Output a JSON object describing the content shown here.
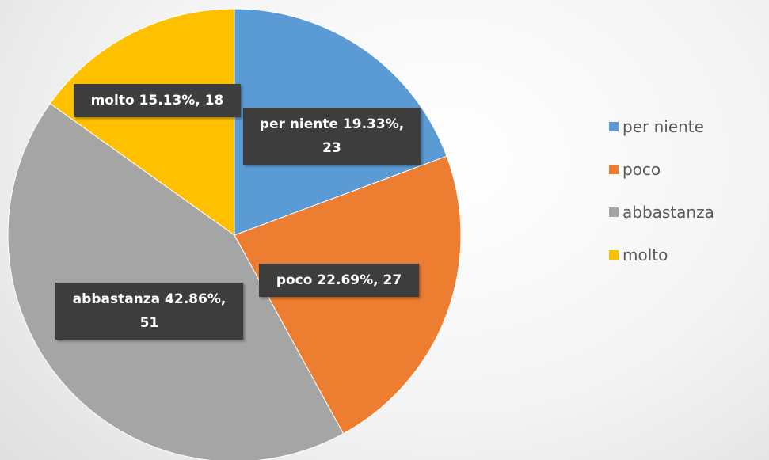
{
  "chart_data": {
    "type": "pie",
    "categories": [
      "per niente",
      "poco",
      "abbastanza",
      "molto"
    ],
    "values": [
      23,
      27,
      51,
      18
    ],
    "value_labels": [
      "per niente 19.33%, 23",
      "poco 22.69%, 27",
      "abbastanza 42.86%, 51",
      "molto 15.13%, 18"
    ],
    "colors": [
      "#5b9bd5",
      "#ed7d31",
      "#a5a5a5",
      "#ffc000"
    ],
    "legend": "right"
  }
}
